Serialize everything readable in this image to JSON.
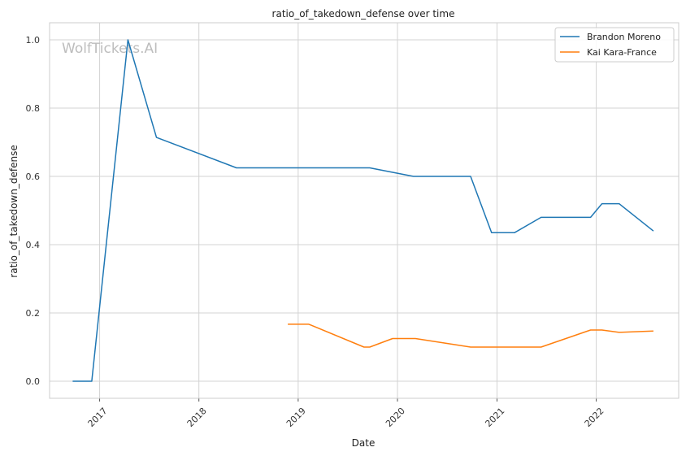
{
  "chart_data": {
    "type": "line",
    "title": "ratio_of_takedown_defense over time",
    "xlabel": "Date",
    "ylabel": "ratio_of_takedown_defense",
    "watermark": "WolfTickets.AI",
    "xlim": [
      "2016-07-01",
      "2022-10-31"
    ],
    "ylim": [
      -0.05,
      1.05
    ],
    "x_ticks": [
      {
        "date": "2017-01-01",
        "label": "2017"
      },
      {
        "date": "2018-01-01",
        "label": "2018"
      },
      {
        "date": "2019-01-01",
        "label": "2019"
      },
      {
        "date": "2020-01-01",
        "label": "2020"
      },
      {
        "date": "2021-01-01",
        "label": "2021"
      },
      {
        "date": "2022-01-01",
        "label": "2022"
      }
    ],
    "y_ticks": [
      {
        "value": 0.0,
        "label": "0.0"
      },
      {
        "value": 0.2,
        "label": "0.2"
      },
      {
        "value": 0.4,
        "label": "0.4"
      },
      {
        "value": 0.6,
        "label": "0.6"
      },
      {
        "value": 0.8,
        "label": "0.8"
      },
      {
        "value": 1.0,
        "label": "1.0"
      }
    ],
    "grid": true,
    "legend_position": "top-right",
    "series": [
      {
        "name": "Brandon Moreno",
        "color": "#1f77b4",
        "points": [
          {
            "x": "2016-09-24",
            "y": 0.0
          },
          {
            "x": "2016-12-03",
            "y": 0.0
          },
          {
            "x": "2017-04-15",
            "y": 1.0
          },
          {
            "x": "2017-07-29",
            "y": 0.714
          },
          {
            "x": "2018-05-19",
            "y": 0.625
          },
          {
            "x": "2019-09-21",
            "y": 0.625
          },
          {
            "x": "2020-02-29",
            "y": 0.6
          },
          {
            "x": "2020-09-26",
            "y": 0.6
          },
          {
            "x": "2020-12-12",
            "y": 0.435
          },
          {
            "x": "2021-03-06",
            "y": 0.435
          },
          {
            "x": "2021-06-12",
            "y": 0.48
          },
          {
            "x": "2021-12-11",
            "y": 0.48
          },
          {
            "x": "2022-01-22",
            "y": 0.52
          },
          {
            "x": "2022-03-26",
            "y": 0.52
          },
          {
            "x": "2022-07-30",
            "y": 0.44
          }
        ]
      },
      {
        "name": "Kai Kara-France",
        "color": "#ff7f0e",
        "points": [
          {
            "x": "2018-11-24",
            "y": 0.167
          },
          {
            "x": "2019-02-09",
            "y": 0.167
          },
          {
            "x": "2019-08-31",
            "y": 0.1
          },
          {
            "x": "2019-09-21",
            "y": 0.1
          },
          {
            "x": "2019-12-14",
            "y": 0.125
          },
          {
            "x": "2020-03-07",
            "y": 0.125
          },
          {
            "x": "2020-09-26",
            "y": 0.1
          },
          {
            "x": "2021-06-12",
            "y": 0.1
          },
          {
            "x": "2021-12-11",
            "y": 0.15
          },
          {
            "x": "2022-01-22",
            "y": 0.15
          },
          {
            "x": "2022-03-26",
            "y": 0.143
          },
          {
            "x": "2022-07-30",
            "y": 0.147
          }
        ]
      }
    ]
  }
}
